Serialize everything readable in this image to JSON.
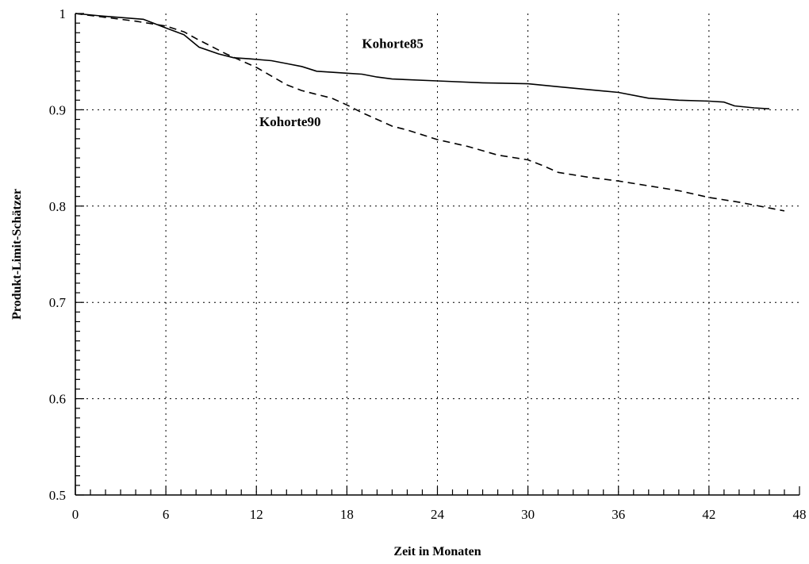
{
  "chart_data": {
    "type": "line",
    "title": "",
    "xlabel": "Zeit in Monaten",
    "ylabel": "Produkt-Limit-Schätzer",
    "xlim": [
      0,
      48
    ],
    "ylim": [
      0.5,
      1.0
    ],
    "x_ticks": [
      "0",
      "6",
      "12",
      "18",
      "24",
      "30",
      "36",
      "42",
      "48"
    ],
    "y_ticks": [
      "0.5",
      "0.6",
      "0.7",
      "0.8",
      "0.9",
      "1"
    ],
    "x_tick_values": [
      0,
      6,
      12,
      18,
      24,
      30,
      36,
      42,
      48
    ],
    "y_tick_values": [
      0.5,
      0.6,
      0.7,
      0.8,
      0.9,
      1.0
    ],
    "grid": true,
    "legend": "inline labels",
    "series": [
      {
        "name": "Kohorte85",
        "style": "solid",
        "label_at": [
          19,
          0.964
        ],
        "x": [
          0,
          2,
          4.5,
          6,
          7.2,
          8.2,
          9.5,
          10.5,
          11.5,
          13,
          14,
          15,
          16,
          18,
          19,
          20,
          21,
          24,
          27,
          30,
          32,
          34,
          36,
          38,
          40,
          42,
          43,
          43.7,
          45,
          46
        ],
        "y": [
          1.0,
          0.997,
          0.994,
          0.985,
          0.978,
          0.965,
          0.958,
          0.954,
          0.953,
          0.951,
          0.948,
          0.945,
          0.94,
          0.938,
          0.937,
          0.934,
          0.932,
          0.93,
          0.928,
          0.927,
          0.924,
          0.921,
          0.918,
          0.912,
          0.91,
          0.909,
          0.908,
          0.904,
          0.902,
          0.901
        ]
      },
      {
        "name": "Kohorte90",
        "style": "dashed",
        "label_at": [
          12.2,
          0.883
        ],
        "x": [
          0,
          2,
          4,
          6,
          7.2,
          8,
          9,
          10,
          11,
          12,
          13,
          14,
          15,
          16,
          17,
          18,
          19,
          20,
          21,
          22,
          24,
          26,
          28,
          30,
          31,
          32,
          34,
          36,
          38,
          40,
          42,
          44,
          46,
          47
        ],
        "y": [
          1.0,
          0.996,
          0.992,
          0.987,
          0.981,
          0.974,
          0.966,
          0.958,
          0.951,
          0.944,
          0.935,
          0.926,
          0.92,
          0.916,
          0.912,
          0.905,
          0.897,
          0.89,
          0.883,
          0.879,
          0.869,
          0.862,
          0.853,
          0.848,
          0.842,
          0.835,
          0.83,
          0.826,
          0.821,
          0.816,
          0.809,
          0.804,
          0.798,
          0.795
        ]
      }
    ]
  }
}
